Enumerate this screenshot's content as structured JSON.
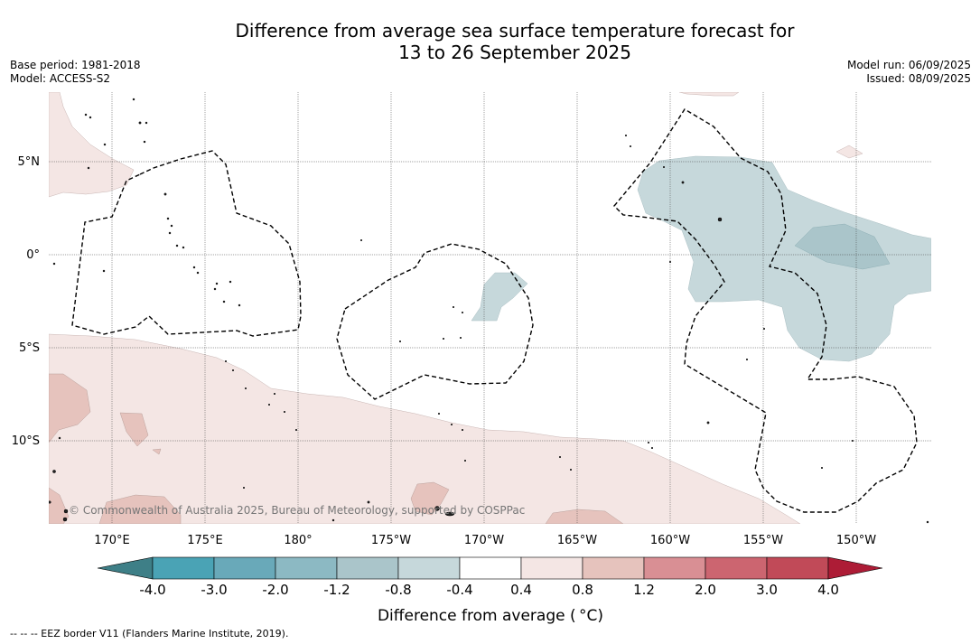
{
  "title": {
    "line1": "Difference from average sea surface temperature forecast for",
    "line2": "13 to 26 September 2025"
  },
  "meta_left": {
    "base_period": "Base period: 1981-2018",
    "model": "Model: ACCESS-S2"
  },
  "meta_right": {
    "model_run": "Model run: 06/09/2025",
    "issued": "Issued: 08/09/2025"
  },
  "map": {
    "lat_labels": [
      "5°N",
      "0°",
      "5°S",
      "10°S"
    ],
    "lon_labels": [
      "170°E",
      "175°E",
      "180°",
      "175°W",
      "170°W",
      "165°W",
      "160°W",
      "155°W",
      "150°W"
    ],
    "copyright": "© Commonwealth of Australia 2025, Bureau of Meteorology, supported by COSPPac"
  },
  "colorbar": {
    "ticks": [
      "-4.0",
      "-3.0",
      "-2.0",
      "-1.2",
      "-0.8",
      "-0.4",
      "0.4",
      "0.8",
      "1.2",
      "2.0",
      "3.0",
      "4.0"
    ],
    "colors": [
      "#4aa3b5",
      "#69a9b9",
      "#8cb9c3",
      "#aac5ca",
      "#c6d8db",
      "#ffffff",
      "#f4e6e4",
      "#e6c3bd",
      "#d98f94",
      "#cc6570",
      "#c14a58"
    ],
    "under_color": "#3e7f87",
    "over_color": "#ad1c36",
    "label": "Difference from average ( °C)"
  },
  "footnote": "--  --  -- EEZ border V11 (Flanders Marine Institute, 2019)."
}
